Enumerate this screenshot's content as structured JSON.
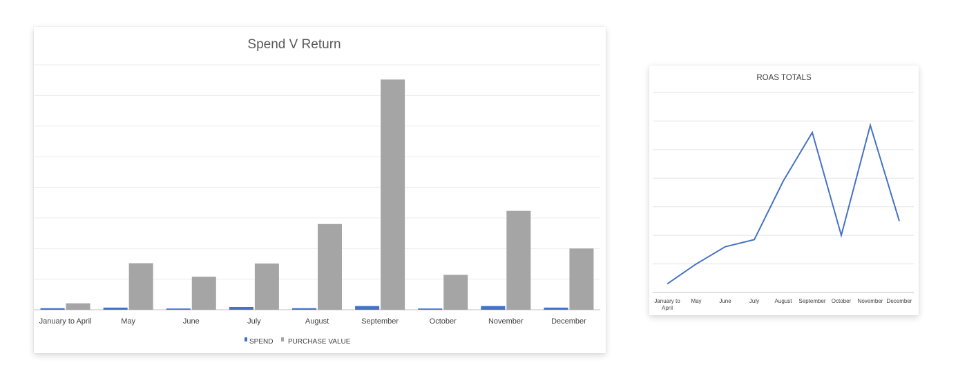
{
  "chart_data": [
    {
      "type": "bar",
      "title": "Spend V Return",
      "categories": [
        "January to April",
        "May",
        "June",
        "July",
        "August",
        "September",
        "October",
        "November",
        "December"
      ],
      "series": [
        {
          "name": "SPEND",
          "color": "#4472C4",
          "values": [
            2.5,
            3.5,
            2,
            4.5,
            2.5,
            6,
            2,
            6,
            3.5
          ]
        },
        {
          "name": "PURCHASE VALUE",
          "color": "#A5A5A5",
          "values": [
            10.5,
            76,
            54,
            75.5,
            140,
            376,
            57,
            161.5,
            100
          ]
        }
      ],
      "ylim": [
        0,
        400
      ],
      "gridlines": "horizontal",
      "legend": "bottom"
    },
    {
      "type": "line",
      "title": "ROAS TOTALS",
      "categories": [
        "January to April",
        "May",
        "June",
        "July",
        "August",
        "September",
        "October",
        "November",
        "December"
      ],
      "series": [
        {
          "color": "#4472C4",
          "values": [
            0.3,
            1.0,
            1.6,
            1.85,
            3.9,
            5.6,
            2.0,
            5.85,
            2.5
          ]
        }
      ],
      "ylim": [
        0,
        7
      ],
      "gridlines": "horizontal",
      "legend": "none"
    }
  ]
}
